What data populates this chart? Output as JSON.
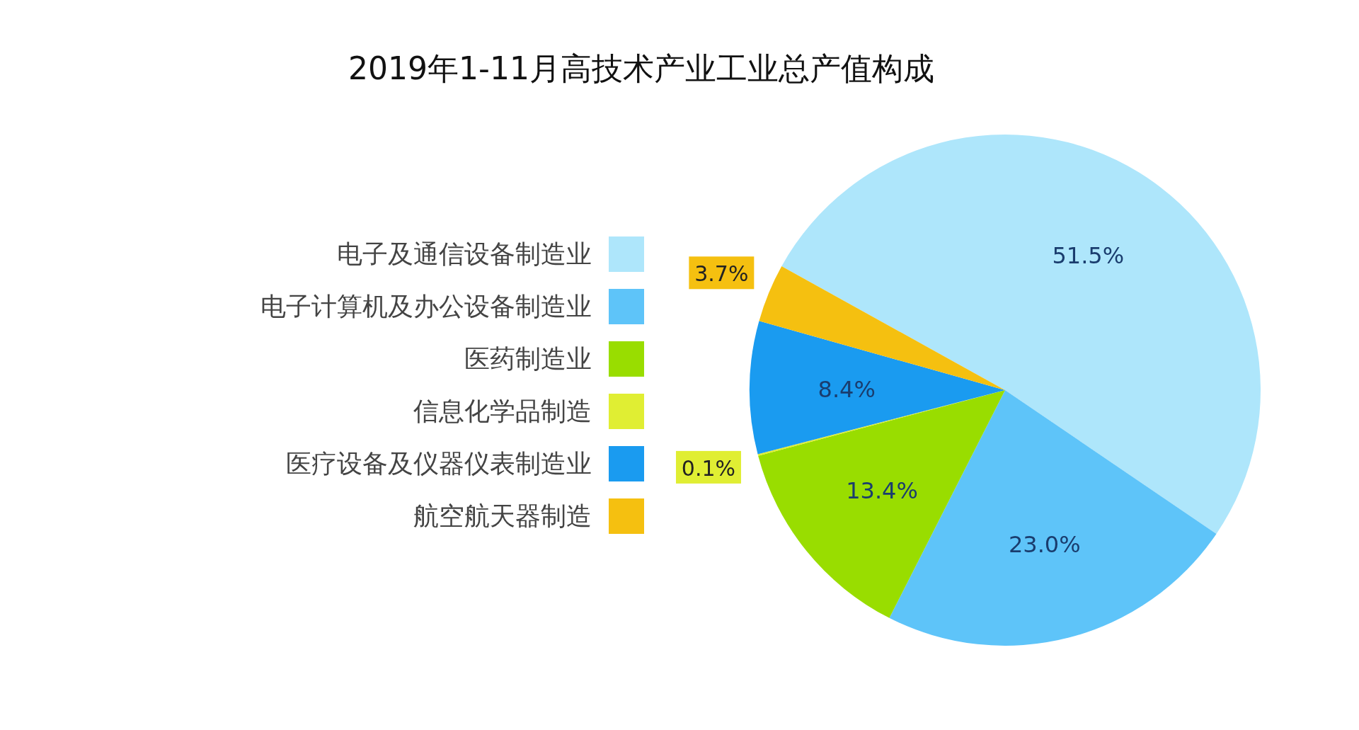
{
  "chart_data": {
    "type": "pie",
    "title": "2019年1-11月高技术产业工业总产值构成",
    "categories": [
      "电子及通信设备制造业",
      "电子计算机及办公设备制造业",
      "医药制造业",
      "信息化学品制造",
      "医疗设备及仪器仪表制造业",
      "航空航天器制造"
    ],
    "values": [
      51.5,
      23.0,
      13.4,
      0.1,
      8.4,
      3.7
    ],
    "colors": [
      "#aee6fb",
      "#5ec4f9",
      "#99dd00",
      "#e0ee33",
      "#1a9bf0",
      "#f5c010"
    ],
    "value_labels": [
      "51.5%",
      "23.0%",
      "13.4%",
      "0.1%",
      "8.4%",
      "3.7%"
    ],
    "legend": "left"
  }
}
